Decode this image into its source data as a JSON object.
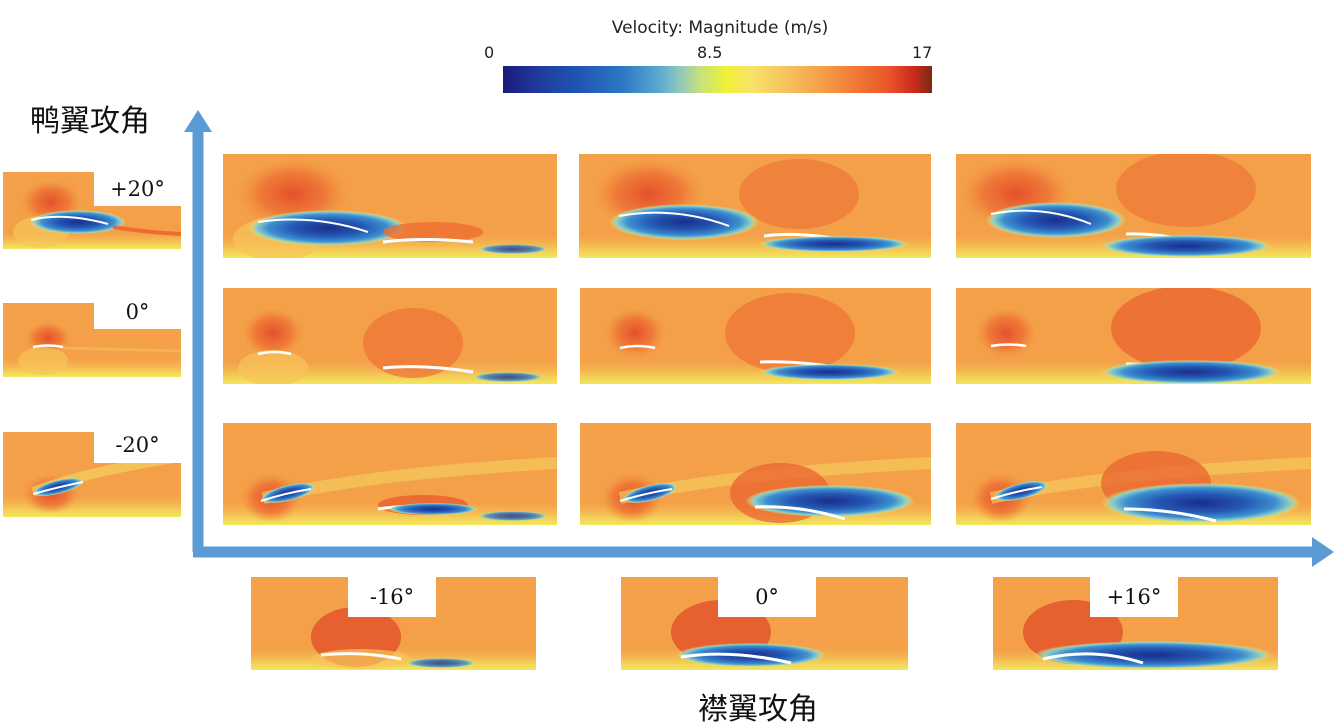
{
  "colorbar": {
    "title": "Velocity: Magnitude (m/s)",
    "min_label": "0",
    "mid_label": "8.5",
    "max_label": "17"
  },
  "axes": {
    "y_title": "鸭翼攻角",
    "x_title": "襟翼攻角"
  },
  "canard_angles": [
    "+20°",
    "0°",
    "-20°"
  ],
  "flap_angles": [
    "-16°",
    "0°",
    "+16°"
  ]
}
